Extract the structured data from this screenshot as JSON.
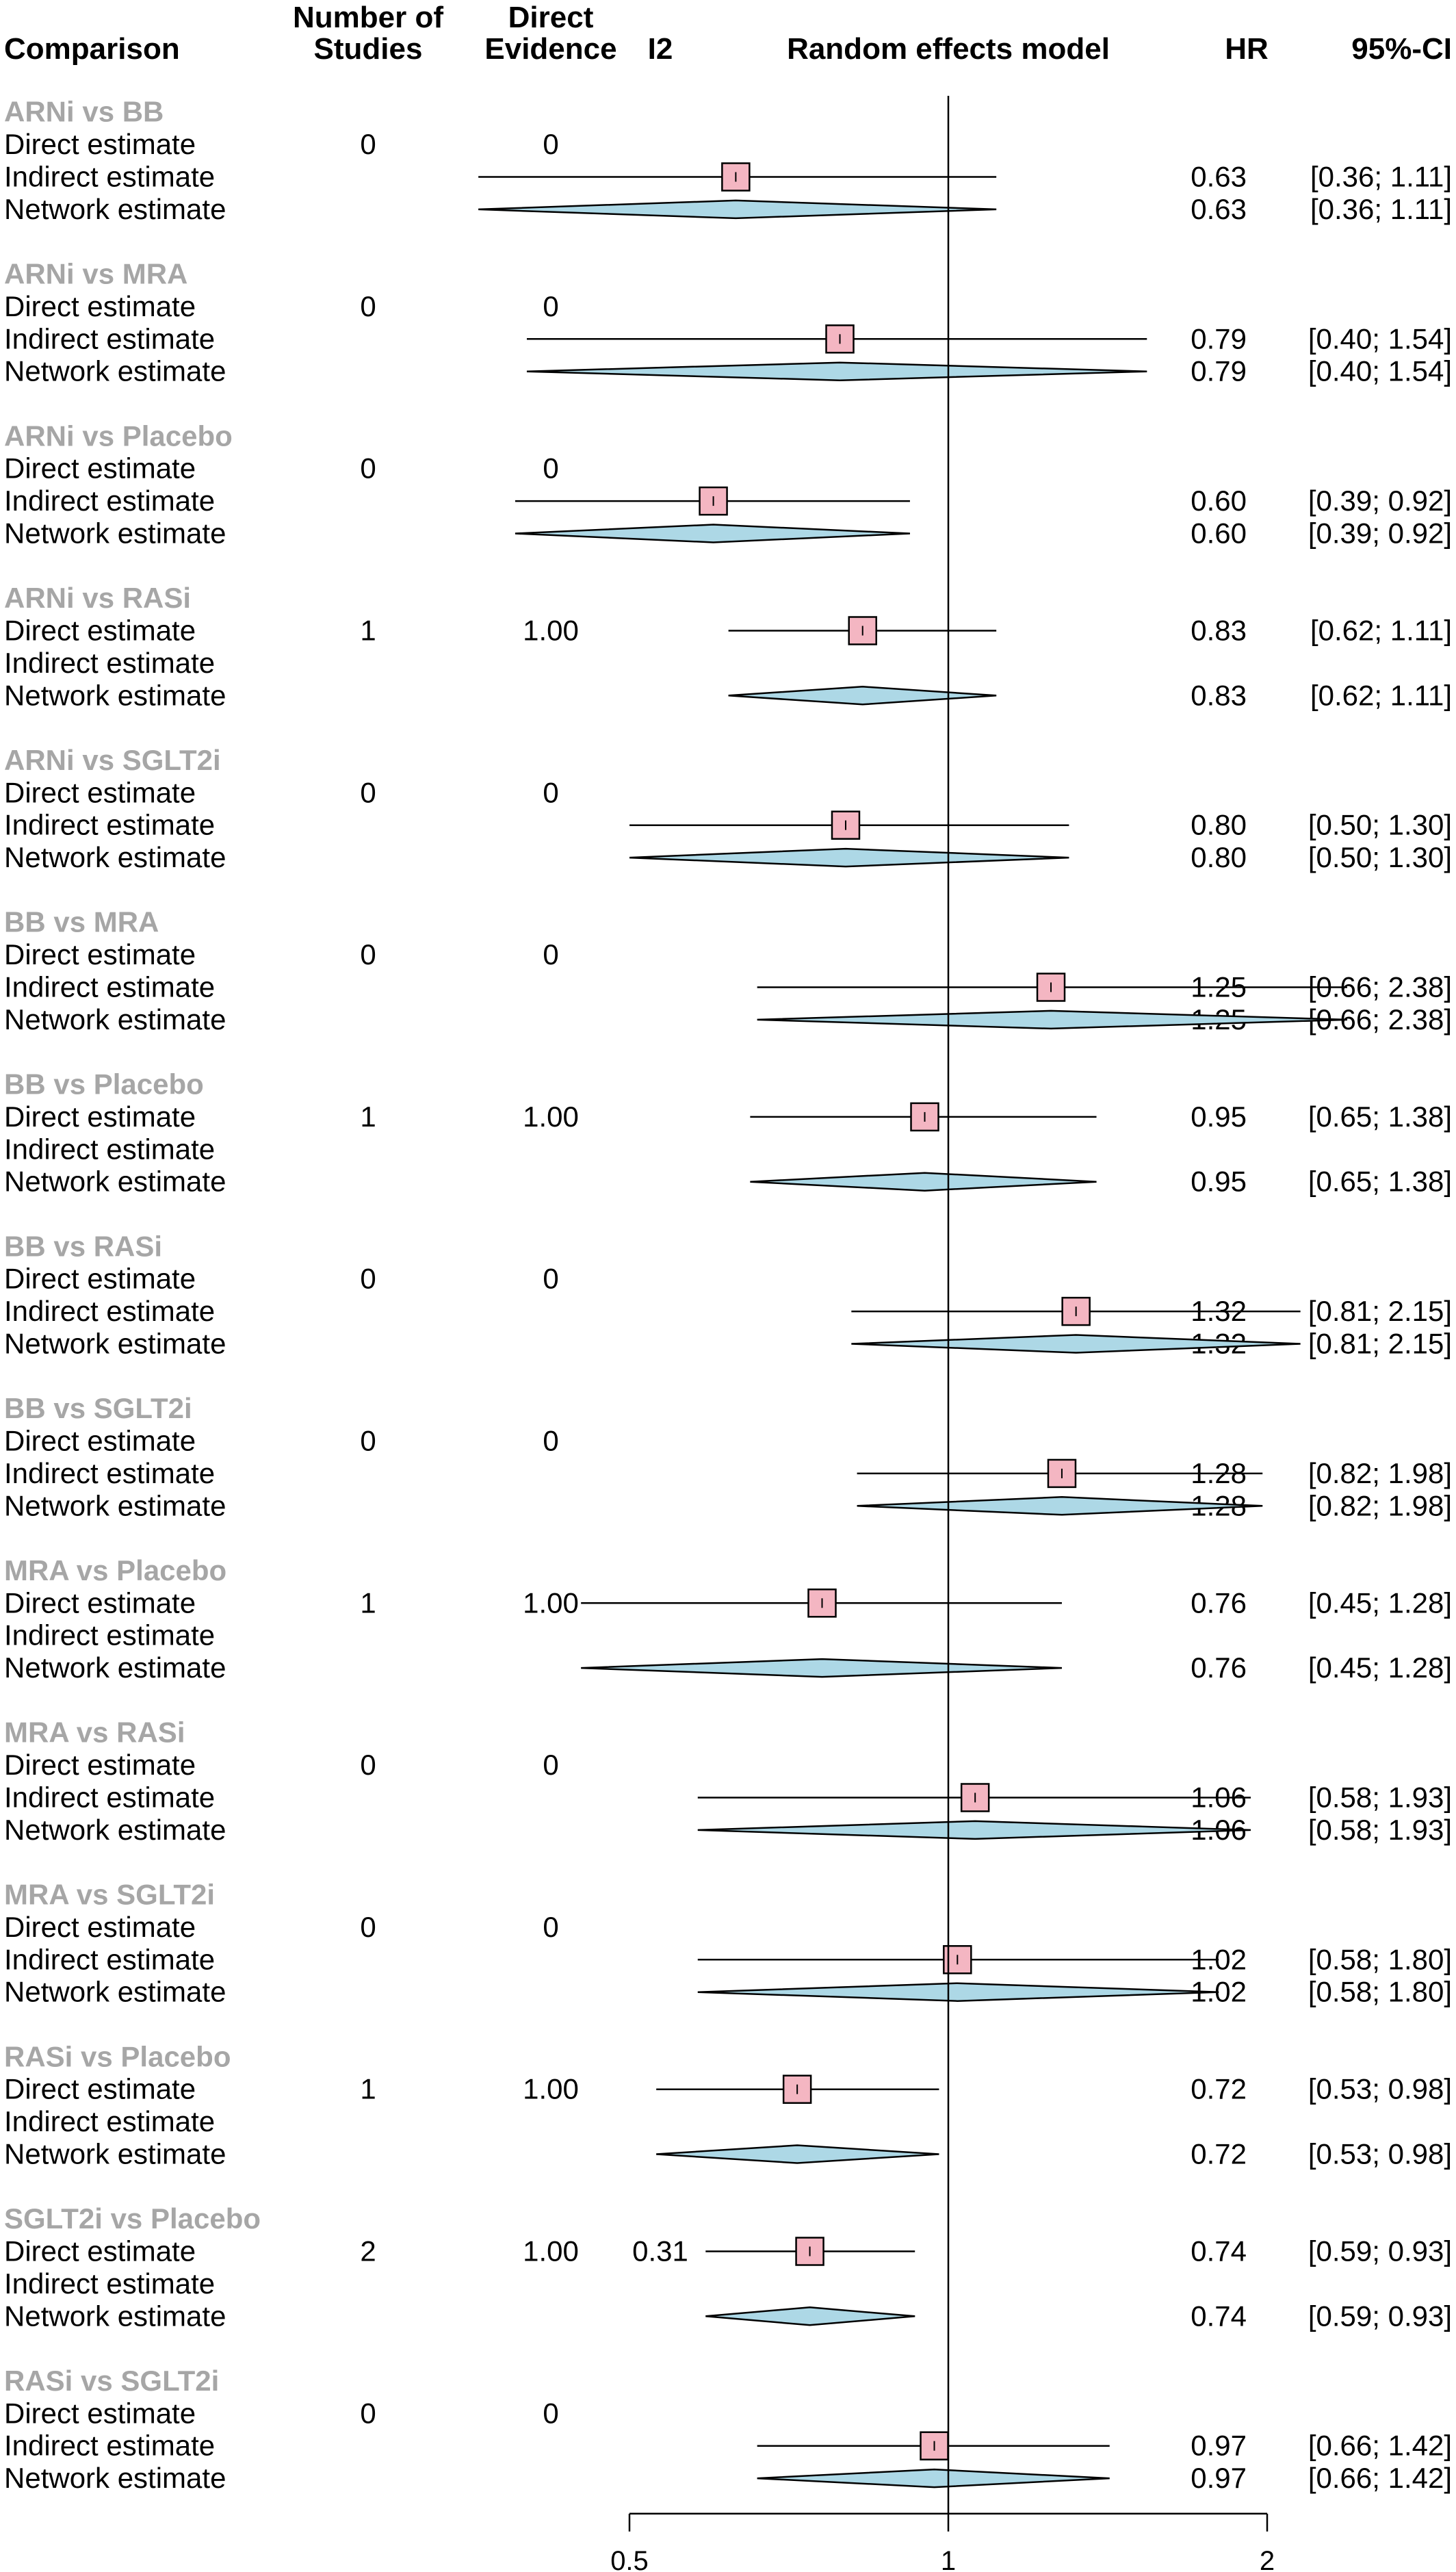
{
  "chart_data": {
    "type": "forest",
    "title": "",
    "scale": "log",
    "xlim": [
      0.5,
      2
    ],
    "x_ticks": [
      "0.5",
      "1",
      "2"
    ],
    "reference_line": 1,
    "columns": {
      "comparison": "Comparison",
      "n_studies": [
        "Number of",
        "Studies"
      ],
      "direct_evidence": [
        "Direct",
        "Evidence"
      ],
      "i2": "I2",
      "plot": "Random effects model",
      "hr": "HR",
      "ci": "95%-CI"
    },
    "row_labels": {
      "direct": "Direct estimate",
      "indirect": "Indirect estimate",
      "network": "Network estimate"
    },
    "comparisons": [
      {
        "name": "ARNi vs BB",
        "n": "0",
        "de": "0",
        "i2": "",
        "direct": null,
        "indirect": {
          "hr": 0.63,
          "lo": 0.36,
          "hi": 1.11,
          "hr_text": "0.63",
          "ci_text": "[0.36; 1.11]"
        },
        "network": {
          "hr": 0.63,
          "lo": 0.36,
          "hi": 1.11,
          "hr_text": "0.63",
          "ci_text": "[0.36; 1.11]"
        }
      },
      {
        "name": "ARNi vs MRA",
        "n": "0",
        "de": "0",
        "i2": "",
        "direct": null,
        "indirect": {
          "hr": 0.79,
          "lo": 0.4,
          "hi": 1.54,
          "hr_text": "0.79",
          "ci_text": "[0.40; 1.54]"
        },
        "network": {
          "hr": 0.79,
          "lo": 0.4,
          "hi": 1.54,
          "hr_text": "0.79",
          "ci_text": "[0.40; 1.54]"
        }
      },
      {
        "name": "ARNi vs Placebo",
        "n": "0",
        "de": "0",
        "i2": "",
        "direct": null,
        "indirect": {
          "hr": 0.6,
          "lo": 0.39,
          "hi": 0.92,
          "hr_text": "0.60",
          "ci_text": "[0.39; 0.92]"
        },
        "network": {
          "hr": 0.6,
          "lo": 0.39,
          "hi": 0.92,
          "hr_text": "0.60",
          "ci_text": "[0.39; 0.92]"
        }
      },
      {
        "name": "ARNi vs RASi",
        "n": "1",
        "de": "1.00",
        "i2": "",
        "direct": {
          "hr": 0.83,
          "lo": 0.62,
          "hi": 1.11,
          "hr_text": "0.83",
          "ci_text": "[0.62; 1.11]"
        },
        "indirect": null,
        "network": {
          "hr": 0.83,
          "lo": 0.62,
          "hi": 1.11,
          "hr_text": "0.83",
          "ci_text": "[0.62; 1.11]"
        }
      },
      {
        "name": "ARNi vs SGLT2i",
        "n": "0",
        "de": "0",
        "i2": "",
        "direct": null,
        "indirect": {
          "hr": 0.8,
          "lo": 0.5,
          "hi": 1.3,
          "hr_text": "0.80",
          "ci_text": "[0.50; 1.30]"
        },
        "network": {
          "hr": 0.8,
          "lo": 0.5,
          "hi": 1.3,
          "hr_text": "0.80",
          "ci_text": "[0.50; 1.30]"
        }
      },
      {
        "name": "BB vs MRA",
        "n": "0",
        "de": "0",
        "i2": "",
        "direct": null,
        "indirect": {
          "hr": 1.25,
          "lo": 0.66,
          "hi": 2.38,
          "hr_text": "1.25",
          "ci_text": "[0.66; 2.38]"
        },
        "network": {
          "hr": 1.25,
          "lo": 0.66,
          "hi": 2.38,
          "hr_text": "1.25",
          "ci_text": "[0.66; 2.38]"
        }
      },
      {
        "name": "BB vs Placebo",
        "n": "1",
        "de": "1.00",
        "i2": "",
        "direct": {
          "hr": 0.95,
          "lo": 0.65,
          "hi": 1.38,
          "hr_text": "0.95",
          "ci_text": "[0.65; 1.38]"
        },
        "indirect": null,
        "network": {
          "hr": 0.95,
          "lo": 0.65,
          "hi": 1.38,
          "hr_text": "0.95",
          "ci_text": "[0.65; 1.38]"
        }
      },
      {
        "name": "BB vs RASi",
        "n": "0",
        "de": "0",
        "i2": "",
        "direct": null,
        "indirect": {
          "hr": 1.32,
          "lo": 0.81,
          "hi": 2.15,
          "hr_text": "1.32",
          "ci_text": "[0.81; 2.15]"
        },
        "network": {
          "hr": 1.32,
          "lo": 0.81,
          "hi": 2.15,
          "hr_text": "1.32",
          "ci_text": "[0.81; 2.15]"
        }
      },
      {
        "name": "BB vs SGLT2i",
        "n": "0",
        "de": "0",
        "i2": "",
        "direct": null,
        "indirect": {
          "hr": 1.28,
          "lo": 0.82,
          "hi": 1.98,
          "hr_text": "1.28",
          "ci_text": "[0.82; 1.98]"
        },
        "network": {
          "hr": 1.28,
          "lo": 0.82,
          "hi": 1.98,
          "hr_text": "1.28",
          "ci_text": "[0.82; 1.98]"
        }
      },
      {
        "name": "MRA vs Placebo",
        "n": "1",
        "de": "1.00",
        "i2": "",
        "direct": {
          "hr": 0.76,
          "lo": 0.45,
          "hi": 1.28,
          "hr_text": "0.76",
          "ci_text": "[0.45; 1.28]"
        },
        "indirect": null,
        "network": {
          "hr": 0.76,
          "lo": 0.45,
          "hi": 1.28,
          "hr_text": "0.76",
          "ci_text": "[0.45; 1.28]"
        }
      },
      {
        "name": "MRA vs RASi",
        "n": "0",
        "de": "0",
        "i2": "",
        "direct": null,
        "indirect": {
          "hr": 1.06,
          "lo": 0.58,
          "hi": 1.93,
          "hr_text": "1.06",
          "ci_text": "[0.58; 1.93]"
        },
        "network": {
          "hr": 1.06,
          "lo": 0.58,
          "hi": 1.93,
          "hr_text": "1.06",
          "ci_text": "[0.58; 1.93]"
        }
      },
      {
        "name": "MRA vs SGLT2i",
        "n": "0",
        "de": "0",
        "i2": "",
        "direct": null,
        "indirect": {
          "hr": 1.02,
          "lo": 0.58,
          "hi": 1.8,
          "hr_text": "1.02",
          "ci_text": "[0.58; 1.80]"
        },
        "network": {
          "hr": 1.02,
          "lo": 0.58,
          "hi": 1.8,
          "hr_text": "1.02",
          "ci_text": "[0.58; 1.80]"
        }
      },
      {
        "name": "RASi vs Placebo",
        "n": "1",
        "de": "1.00",
        "i2": "",
        "direct": {
          "hr": 0.72,
          "lo": 0.53,
          "hi": 0.98,
          "hr_text": "0.72",
          "ci_text": "[0.53; 0.98]"
        },
        "indirect": null,
        "network": {
          "hr": 0.72,
          "lo": 0.53,
          "hi": 0.98,
          "hr_text": "0.72",
          "ci_text": "[0.53; 0.98]"
        }
      },
      {
        "name": "SGLT2i vs Placebo",
        "n": "2",
        "de": "1.00",
        "i2": "0.31",
        "direct": {
          "hr": 0.74,
          "lo": 0.59,
          "hi": 0.93,
          "hr_text": "0.74",
          "ci_text": "[0.59; 0.93]"
        },
        "indirect": null,
        "network": {
          "hr": 0.74,
          "lo": 0.59,
          "hi": 0.93,
          "hr_text": "0.74",
          "ci_text": "[0.59; 0.93]"
        }
      },
      {
        "name": "RASi vs SGLT2i",
        "n": "0",
        "de": "0",
        "i2": "",
        "direct": null,
        "indirect": {
          "hr": 0.97,
          "lo": 0.66,
          "hi": 1.42,
          "hr_text": "0.97",
          "ci_text": "[0.66; 1.42]"
        },
        "network": {
          "hr": 0.97,
          "lo": 0.66,
          "hi": 1.42,
          "hr_text": "0.97",
          "ci_text": "[0.66; 1.42]"
        }
      }
    ],
    "colors": {
      "square_fill": "#f4b6c2",
      "diamond_fill": "#add8e6",
      "outline": "#000000",
      "group_label": "#a6a6a6"
    }
  }
}
